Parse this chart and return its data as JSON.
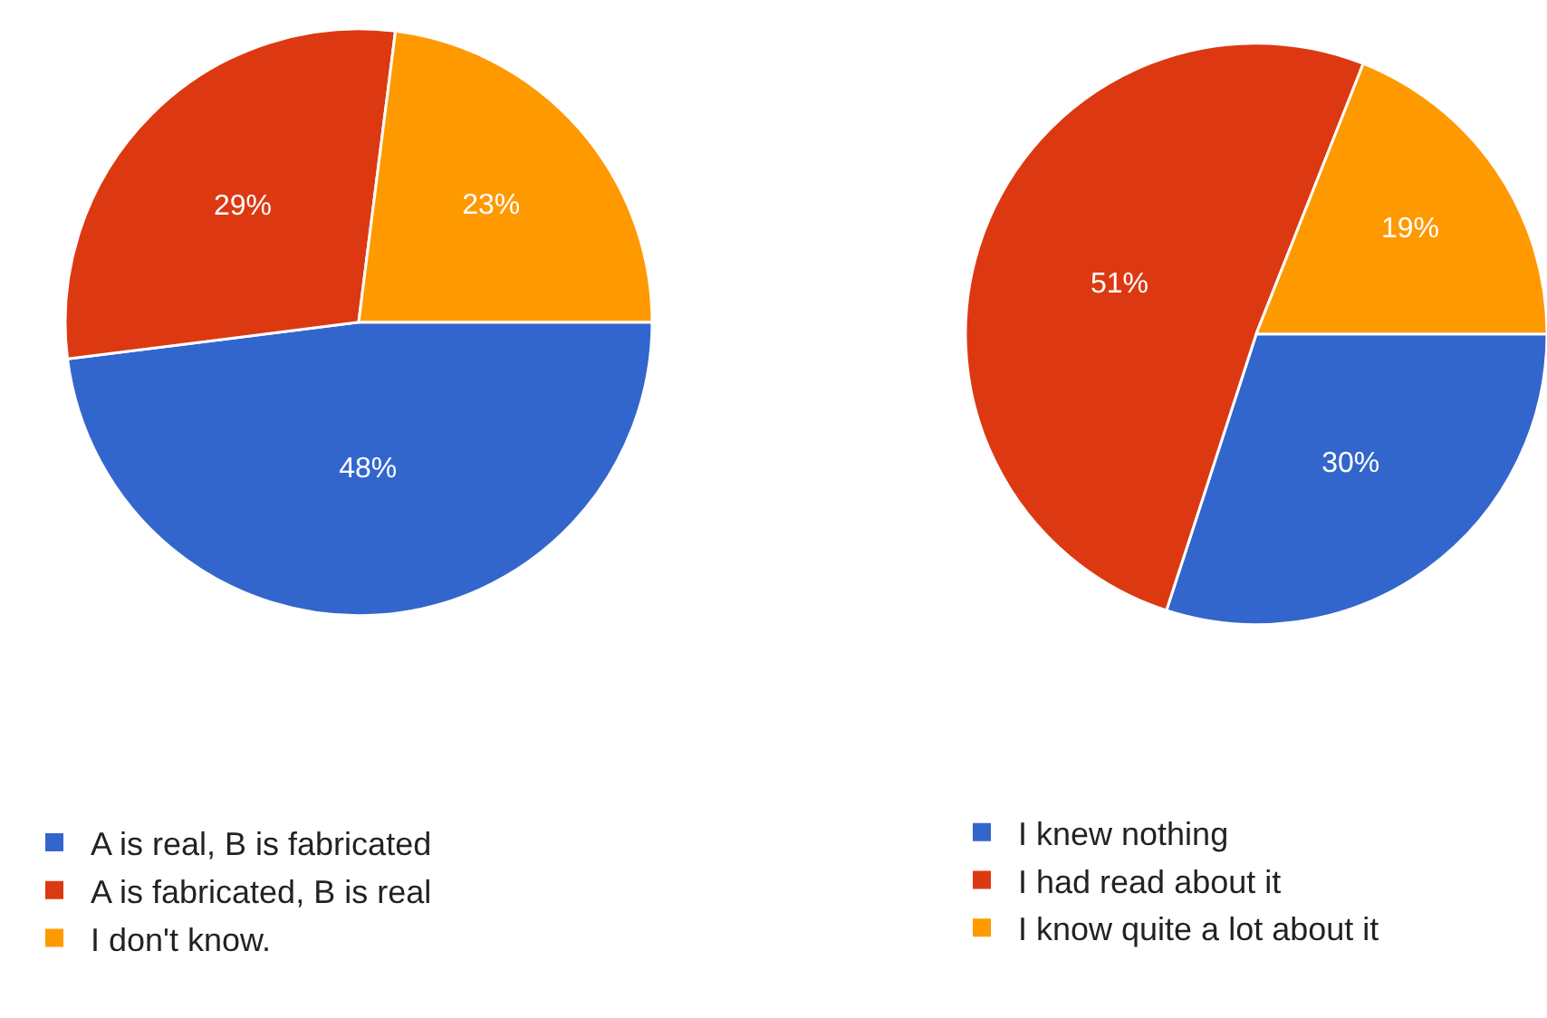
{
  "chart_data": [
    {
      "type": "pie",
      "categories": [
        "A is real, B is fabricated",
        "A is fabricated, B is real",
        "I don't know."
      ],
      "values": [
        48,
        29,
        23
      ],
      "value_labels": [
        "48%",
        "29%",
        "23%"
      ],
      "colors": [
        "#3366cc",
        "#dc3912",
        "#ff9900"
      ],
      "legend": "bottom"
    },
    {
      "type": "pie",
      "categories": [
        "I knew nothing",
        "I had read about it",
        "I know quite a lot about it"
      ],
      "values": [
        30,
        51,
        19
      ],
      "value_labels": [
        "30%",
        "51%",
        "19%"
      ],
      "colors": [
        "#3366cc",
        "#dc3912",
        "#ff9900"
      ],
      "legend": "bottom"
    }
  ]
}
